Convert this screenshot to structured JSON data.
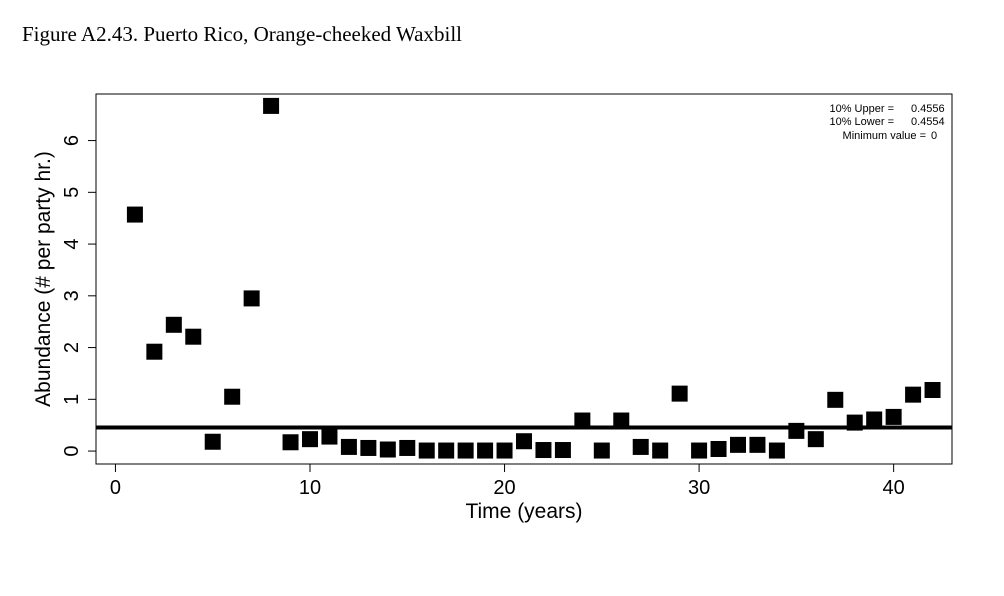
{
  "figure": {
    "title": "Figure A2.43. Puerto Rico, Orange-cheeked Waxbill"
  },
  "chart_data": {
    "type": "scatter",
    "xlabel": "Time (years)",
    "ylabel": "Abundance (# per party hr.)",
    "xlim": [
      -1,
      43
    ],
    "ylim": [
      -0.25,
      6.9
    ],
    "xticks": [
      0,
      10,
      20,
      30,
      40
    ],
    "yticks": [
      0,
      1,
      2,
      3,
      4,
      5,
      6
    ],
    "grid": false,
    "point_color": "#000000",
    "marker": "filled-square",
    "x": [
      1,
      2,
      3,
      4,
      5,
      6,
      7,
      8,
      9,
      10,
      11,
      12,
      13,
      14,
      15,
      16,
      17,
      18,
      19,
      20,
      21,
      22,
      23,
      24,
      25,
      26,
      27,
      28,
      29,
      30,
      31,
      32,
      33,
      34,
      35,
      36,
      37,
      38,
      39,
      40,
      41,
      42
    ],
    "y": [
      4.57,
      1.92,
      2.44,
      2.21,
      0.18,
      1.05,
      2.95,
      6.67,
      0.17,
      0.23,
      0.28,
      0.08,
      0.06,
      0.03,
      0.06,
      0.01,
      0.01,
      0.01,
      0.01,
      0.01,
      0.19,
      0.02,
      0.02,
      0.59,
      0.01,
      0.59,
      0.08,
      0.01,
      1.11,
      0.01,
      0.04,
      0.12,
      0.12,
      0.01,
      0.39,
      0.23,
      0.99,
      0.55,
      0.61,
      0.66,
      1.09,
      1.18
    ],
    "reference_line": {
      "y": 0.4555
    },
    "legend": {
      "placement": "top-right",
      "lines": [
        {
          "label": "10% Upper =",
          "value": "0.4556"
        },
        {
          "label": "10% Lower =",
          "value": "0.4554"
        },
        {
          "label": "Minimum value =",
          "value": "0"
        }
      ]
    }
  }
}
